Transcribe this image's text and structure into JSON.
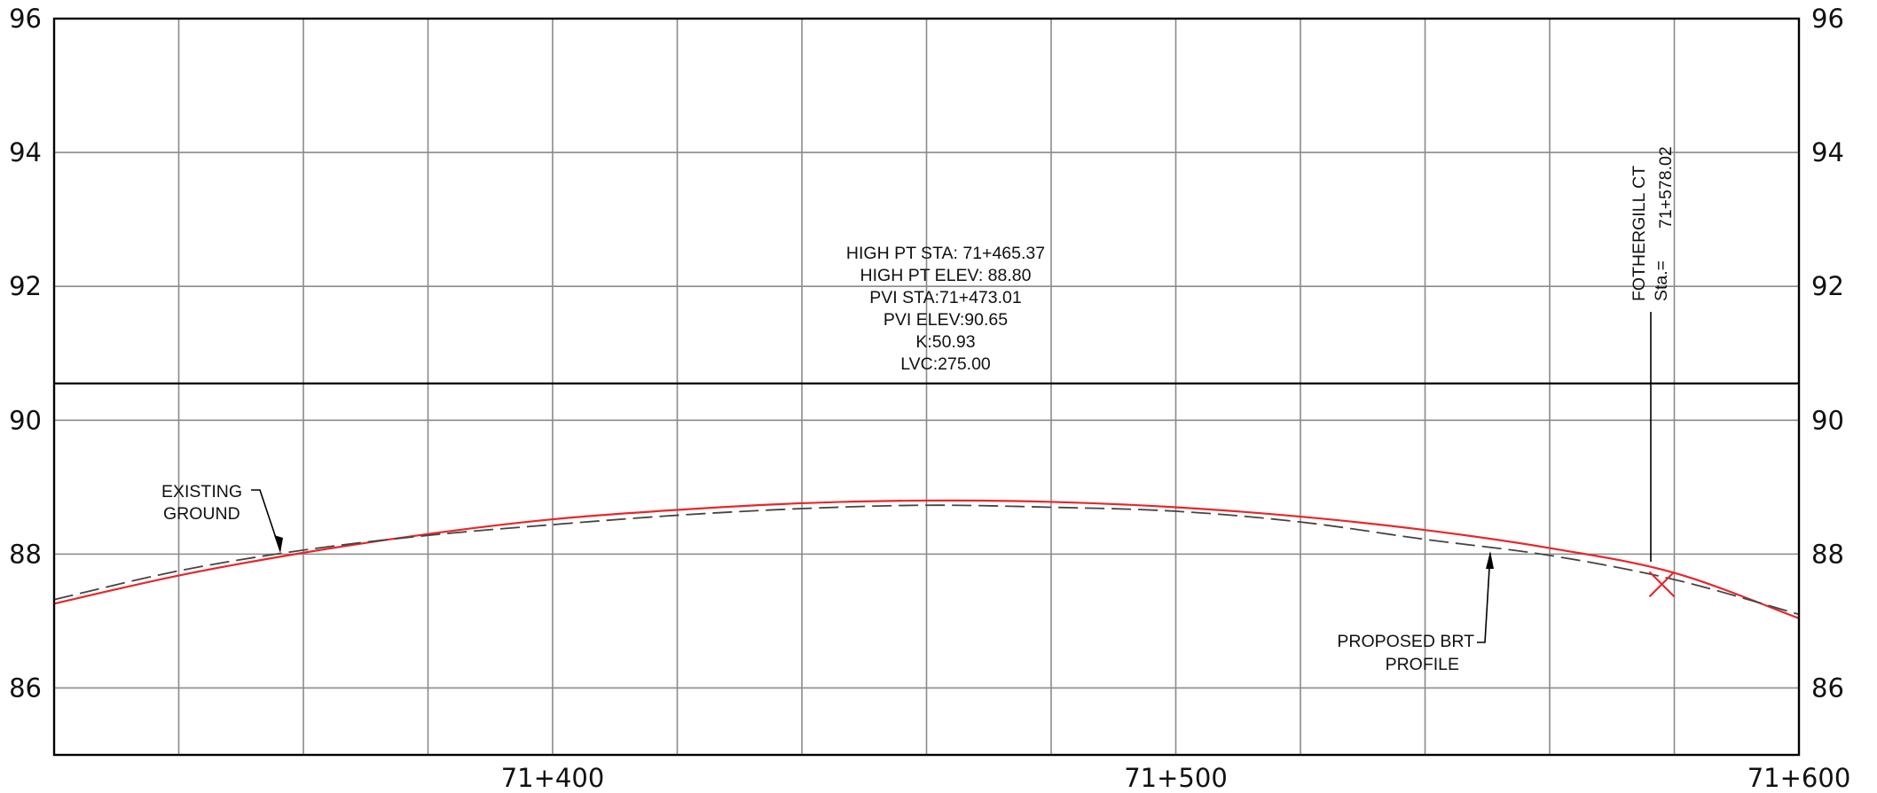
{
  "chart_data": {
    "type": "line",
    "x_range": [
      71.32,
      71.6
    ],
    "ylim": [
      85,
      96
    ],
    "x_ticks": [
      {
        "value": 71.4,
        "label": "71+400"
      },
      {
        "value": 71.5,
        "label": "71+500"
      },
      {
        "value": 71.6,
        "label": "71+600"
      }
    ],
    "x_gridlines": [
      71.34,
      71.36,
      71.38,
      71.4,
      71.42,
      71.44,
      71.46,
      71.48,
      71.5,
      71.52,
      71.54,
      71.56,
      71.58
    ],
    "y_ticks": [
      86,
      88,
      90,
      92,
      94,
      96
    ],
    "grid": true,
    "horizontal_line": 90.55,
    "series": [
      {
        "key": "proposed",
        "color": "#e8262a",
        "style": "solid",
        "x": [
          71.32,
          71.34,
          71.36,
          71.38,
          71.4,
          71.42,
          71.44,
          71.46,
          71.48,
          71.5,
          71.52,
          71.54,
          71.56,
          71.58,
          71.6
        ],
        "y": [
          87.26,
          87.68,
          88.02,
          88.3,
          88.52,
          88.66,
          88.76,
          88.8,
          88.78,
          88.7,
          88.56,
          88.36,
          88.09,
          87.72,
          87.04
        ]
      },
      {
        "key": "existing",
        "color": "#444444",
        "style": "dashed",
        "x": [
          71.32,
          71.34,
          71.36,
          71.38,
          71.4,
          71.42,
          71.44,
          71.46,
          71.48,
          71.5,
          71.52,
          71.54,
          71.56,
          71.58,
          71.6
        ],
        "y": [
          87.32,
          87.75,
          88.06,
          88.28,
          88.44,
          88.58,
          88.68,
          88.73,
          88.7,
          88.64,
          88.48,
          88.22,
          87.98,
          87.62,
          87.1
        ]
      }
    ],
    "marker": {
      "x": 71.578,
      "y": 87.55,
      "color": "#e8262a"
    }
  },
  "labels": {
    "existing_ground": [
      "EXISTING",
      "GROUND"
    ],
    "proposed_profile": [
      "PROPOSED BRT",
      "PROFILE"
    ],
    "curve_data": [
      "HIGH PT STA: 71+465.37",
      "HIGH PT ELEV: 88.80",
      "PVI STA:71+473.01",
      "PVI ELEV:90.65",
      "K:50.93",
      "LVC:275.00"
    ],
    "cross_street": "FOTHERGILL CT",
    "cross_station_label": "Sta.=",
    "cross_station_value": "71+578.02"
  }
}
